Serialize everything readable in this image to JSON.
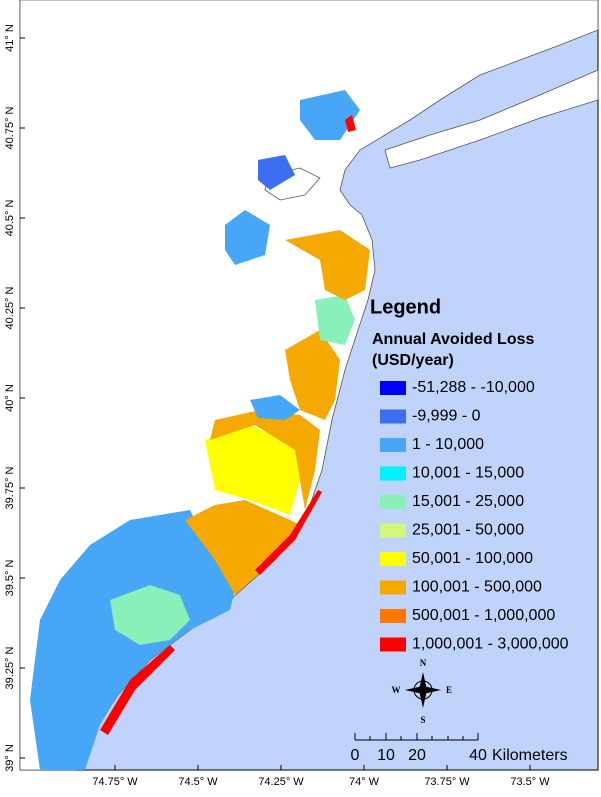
{
  "map": {
    "lat_labels": [
      "41° N",
      "40.75° N",
      "40.5° N",
      "40.25° N",
      "40° N",
      "39.75° N",
      "39.5° N",
      "39.25° N",
      "39° N"
    ],
    "lon_labels": [
      "74.75° W",
      "74.5° W",
      "74.25° W",
      "74° W",
      "73.75° W",
      "73.5° W"
    ],
    "legend": {
      "title": "Legend",
      "subtitle_lines": [
        "Annual Avoided Loss",
        "(USD/year)"
      ],
      "items": [
        {
          "label": "-51,288 - -10,000",
          "color": "#0000ff"
        },
        {
          "label": "-9,999 - 0",
          "color": "#3d6ef2"
        },
        {
          "label": "1 - 10,000",
          "color": "#47a6f5"
        },
        {
          "label": "10,001 - 15,000",
          "color": "#00f2ff"
        },
        {
          "label": "15,001 - 25,000",
          "color": "#88f0b8"
        },
        {
          "label": "25,001 - 50,000",
          "color": "#d4f77a"
        },
        {
          "label": "50,001 - 100,000",
          "color": "#ffff00"
        },
        {
          "label": "100,001 - 500,000",
          "color": "#f5a800"
        },
        {
          "label": "500,001 - 1,000,000",
          "color": "#ff7700"
        },
        {
          "label": "1,000,001 - 3,000,000",
          "color": "#ff0000"
        }
      ]
    },
    "compass": {
      "north": "N",
      "east": "E",
      "south": "S",
      "west": "W"
    },
    "scale": {
      "labels": [
        "0",
        "10",
        "20",
        "40"
      ],
      "unit": "Kilometers"
    }
  }
}
